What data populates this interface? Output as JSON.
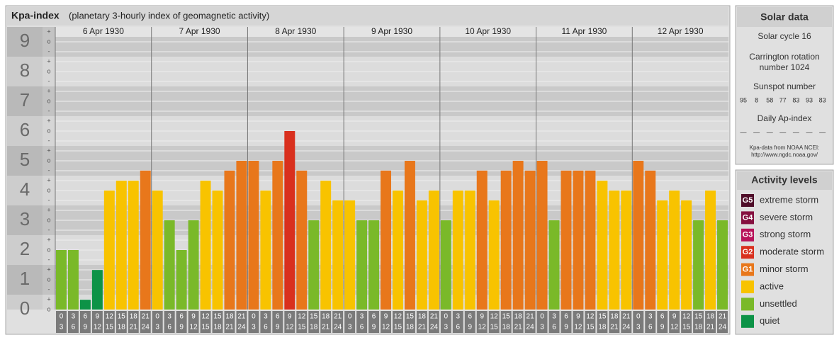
{
  "chart_data": {
    "type": "bar",
    "title": "Kpa-index",
    "subtitle": "(planetary 3-hourly index of geomagnetic activity)",
    "ylim": [
      0,
      9.5
    ],
    "yticks": [
      0,
      1,
      2,
      3,
      4,
      5,
      6,
      7,
      8,
      9
    ],
    "minor_labels": {
      "minus": "-",
      "zero": "o",
      "plus": "+"
    },
    "hours": [
      [
        "0",
        "3"
      ],
      [
        "3",
        "6"
      ],
      [
        "6",
        "9"
      ],
      [
        "9",
        "12"
      ],
      [
        "12",
        "15"
      ],
      [
        "15",
        "18"
      ],
      [
        "18",
        "21"
      ],
      [
        "21",
        "24"
      ]
    ],
    "groups": [
      {
        "label": "6 Apr 1930",
        "values": [
          2,
          2,
          0.33,
          1.33,
          4,
          4.33,
          4.33,
          4.67
        ],
        "colors": [
          "#7ab929",
          "#7ab929",
          "#0d9347",
          "#0d9347",
          "#f8c300",
          "#f8c300",
          "#f8c300",
          "#e8771b"
        ]
      },
      {
        "label": "7 Apr 1930",
        "values": [
          4,
          3,
          2,
          3,
          4.33,
          4,
          4.67,
          5
        ],
        "colors": [
          "#f8c300",
          "#7ab929",
          "#7ab929",
          "#7ab929",
          "#f8c300",
          "#f8c300",
          "#e8771b",
          "#e8771b"
        ]
      },
      {
        "label": "8 Apr 1930",
        "values": [
          5,
          4,
          5,
          6,
          4.67,
          3,
          4.33,
          3.67
        ],
        "colors": [
          "#e8771b",
          "#f8c300",
          "#e8771b",
          "#d9301e",
          "#e8771b",
          "#7ab929",
          "#f8c300",
          "#f8c300"
        ]
      },
      {
        "label": "9 Apr 1930",
        "values": [
          3.67,
          3,
          3,
          4.67,
          4,
          5,
          3.67,
          4
        ],
        "colors": [
          "#f8c300",
          "#7ab929",
          "#7ab929",
          "#e8771b",
          "#f8c300",
          "#e8771b",
          "#f8c300",
          "#f8c300"
        ]
      },
      {
        "label": "10 Apr 1930",
        "values": [
          3,
          4,
          4,
          4.67,
          3.67,
          4.67,
          5,
          4.67
        ],
        "colors": [
          "#7ab929",
          "#f8c300",
          "#f8c300",
          "#e8771b",
          "#f8c300",
          "#e8771b",
          "#e8771b",
          "#e8771b"
        ]
      },
      {
        "label": "11 Apr 1930",
        "values": [
          5,
          3,
          4.67,
          4.67,
          4.67,
          4.33,
          4,
          4
        ],
        "colors": [
          "#e8771b",
          "#7ab929",
          "#e8771b",
          "#e8771b",
          "#e8771b",
          "#f8c300",
          "#f8c300",
          "#f8c300"
        ]
      },
      {
        "label": "12 Apr 1930",
        "values": [
          5,
          4.67,
          3.67,
          4,
          3.67,
          3,
          4,
          3
        ],
        "colors": [
          "#e8771b",
          "#e8771b",
          "#f8c300",
          "#f8c300",
          "#f8c300",
          "#7ab929",
          "#f8c300",
          "#7ab929"
        ]
      }
    ]
  },
  "solar": {
    "title": "Solar data",
    "cycle": "Solar cycle 16",
    "carrington": [
      "Carrington rotation",
      "number 1024"
    ],
    "sunspot_title": "Sunspot number",
    "sunspot": [
      95,
      8,
      58,
      77,
      83,
      93,
      83
    ],
    "ap_title": "Daily Ap-index",
    "ap": [
      "—",
      "—",
      "—",
      "—",
      "—",
      "—",
      "—"
    ],
    "source": [
      "Kpa-data from NOAA NCEI:",
      "http://www.ngdc.noaa.gov/"
    ]
  },
  "levels": {
    "title": "Activity levels",
    "items": [
      {
        "code": "G5",
        "label": "extreme storm",
        "color": "#4f0d28"
      },
      {
        "code": "G4",
        "label": "severe storm",
        "color": "#85103f"
      },
      {
        "code": "G3",
        "label": "strong storm",
        "color": "#b8135a"
      },
      {
        "code": "G2",
        "label": "moderate storm",
        "color": "#d9301e"
      },
      {
        "code": "G1",
        "label": "minor storm",
        "color": "#e8771b"
      },
      {
        "code": "",
        "label": "active",
        "color": "#f8c300"
      },
      {
        "code": "",
        "label": "unsettled",
        "color": "#7ab929"
      },
      {
        "code": "",
        "label": "quiet",
        "color": "#0d9347"
      }
    ]
  }
}
